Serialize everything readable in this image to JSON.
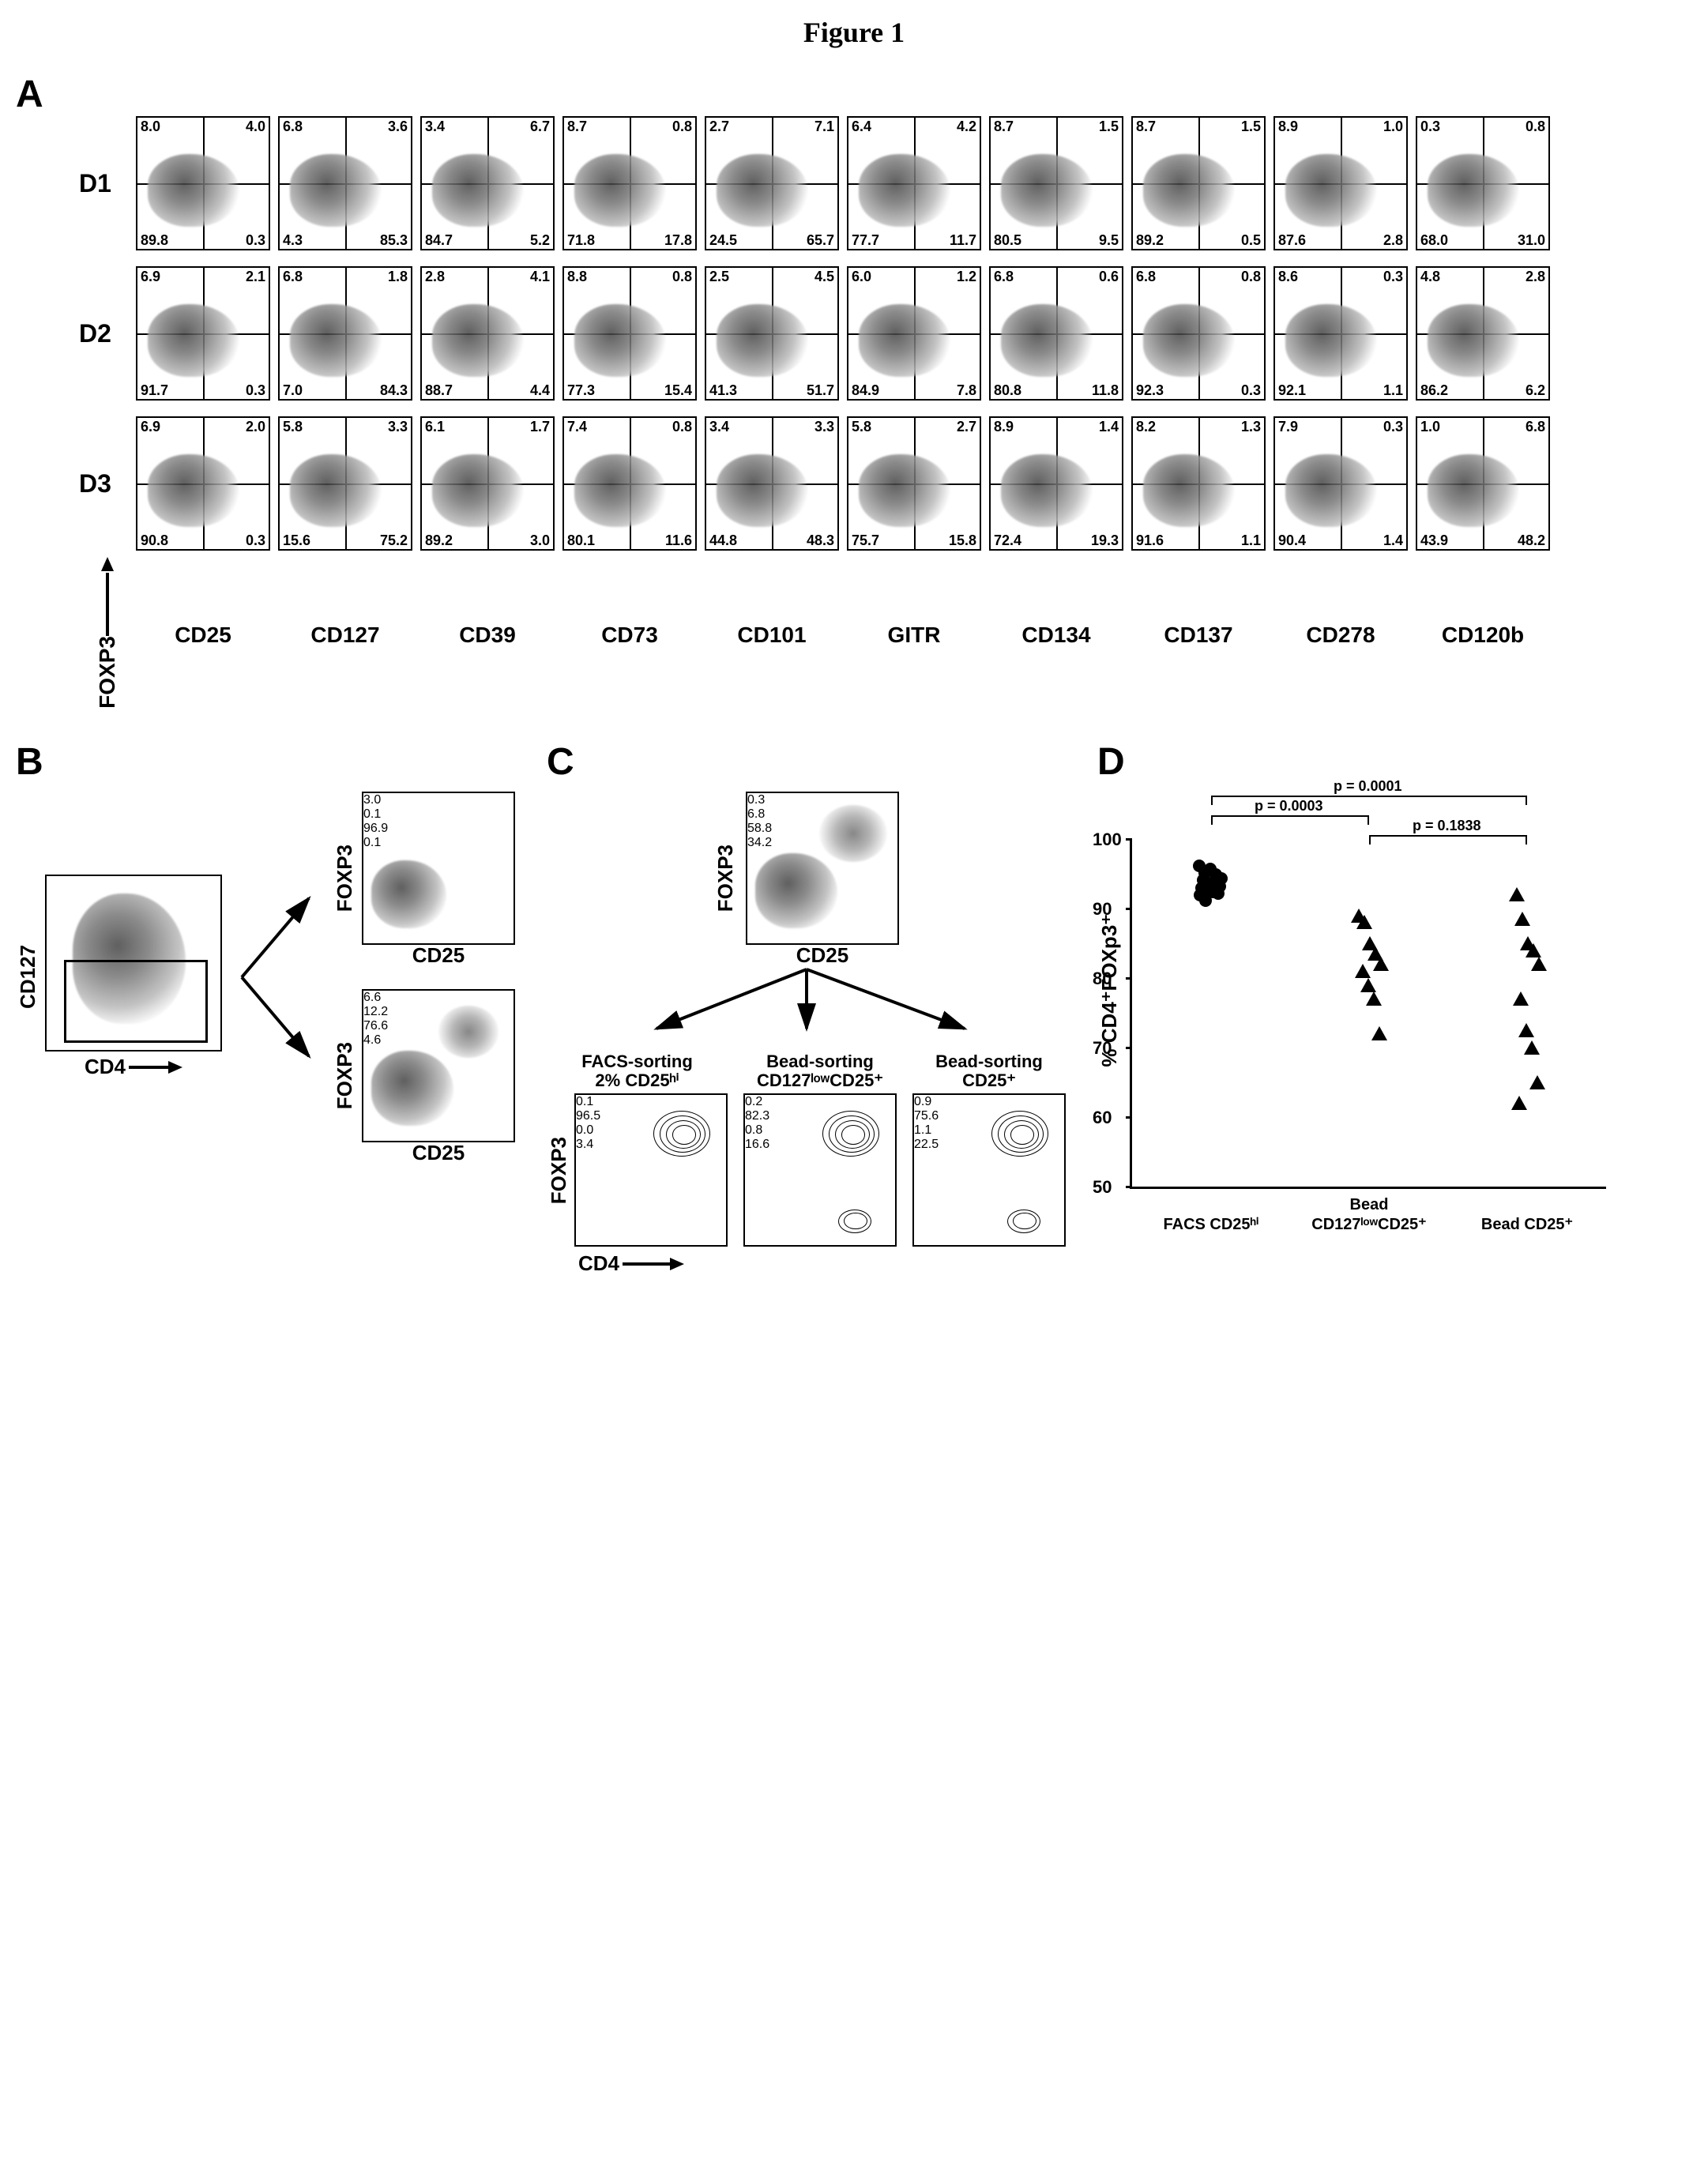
{
  "figure_title": "Figure 1",
  "panelA": {
    "donors": [
      "D1",
      "D2",
      "D3"
    ],
    "markers": [
      "CD25",
      "CD127",
      "CD39",
      "CD73",
      "CD101",
      "GITR",
      "CD134",
      "CD137",
      "CD278",
      "CD120b"
    ],
    "y_axis": "FOXP3",
    "quadrants": {
      "D1": [
        {
          "ul": "8.0",
          "ur": "4.0",
          "ll": "89.8",
          "lr": "0.3"
        },
        {
          "ul": "6.8",
          "ur": "3.6",
          "ll": "4.3",
          "lr": "85.3"
        },
        {
          "ul": "3.4",
          "ur": "6.7",
          "ll": "84.7",
          "lr": "5.2"
        },
        {
          "ul": "8.7",
          "ur": "0.8",
          "ll": "71.8",
          "lr": "17.8"
        },
        {
          "ul": "2.7",
          "ur": "7.1",
          "ll": "24.5",
          "lr": "65.7"
        },
        {
          "ul": "6.4",
          "ur": "4.2",
          "ll": "77.7",
          "lr": "11.7"
        },
        {
          "ul": "8.7",
          "ur": "1.5",
          "ll": "80.5",
          "lr": "9.5"
        },
        {
          "ul": "8.7",
          "ur": "1.5",
          "ll": "89.2",
          "lr": "0.5"
        },
        {
          "ul": "8.9",
          "ur": "1.0",
          "ll": "87.6",
          "lr": "2.8"
        },
        {
          "ul": "0.3",
          "ur": "0.8",
          "ll": "68.0",
          "lr": "31.0"
        }
      ],
      "D2": [
        {
          "ul": "6.9",
          "ur": "2.1",
          "ll": "91.7",
          "lr": "0.3"
        },
        {
          "ul": "6.8",
          "ur": "1.8",
          "ll": "7.0",
          "lr": "84.3"
        },
        {
          "ul": "2.8",
          "ur": "4.1",
          "ll": "88.7",
          "lr": "4.4"
        },
        {
          "ul": "8.8",
          "ur": "0.8",
          "ll": "77.3",
          "lr": "15.4"
        },
        {
          "ul": "2.5",
          "ur": "4.5",
          "ll": "41.3",
          "lr": "51.7"
        },
        {
          "ul": "6.0",
          "ur": "1.2",
          "ll": "84.9",
          "lr": "7.8"
        },
        {
          "ul": "6.8",
          "ur": "0.6",
          "ll": "80.8",
          "lr": "11.8"
        },
        {
          "ul": "6.8",
          "ur": "0.8",
          "ll": "92.3",
          "lr": "0.3"
        },
        {
          "ul": "8.6",
          "ur": "0.3",
          "ll": "92.1",
          "lr": "1.1"
        },
        {
          "ul": "4.8",
          "ur": "2.8",
          "ll": "86.2",
          "lr": "6.2"
        }
      ],
      "D3": [
        {
          "ul": "6.9",
          "ur": "2.0",
          "ll": "90.8",
          "lr": "0.3"
        },
        {
          "ul": "5.8",
          "ur": "3.3",
          "ll": "15.6",
          "lr": "75.2"
        },
        {
          "ul": "6.1",
          "ur": "1.7",
          "ll": "89.2",
          "lr": "3.0"
        },
        {
          "ul": "7.4",
          "ur": "0.8",
          "ll": "80.1",
          "lr": "11.6"
        },
        {
          "ul": "3.4",
          "ur": "3.3",
          "ll": "44.8",
          "lr": "48.3"
        },
        {
          "ul": "5.8",
          "ur": "2.7",
          "ll": "75.7",
          "lr": "15.8"
        },
        {
          "ul": "8.9",
          "ur": "1.4",
          "ll": "72.4",
          "lr": "19.3"
        },
        {
          "ul": "8.2",
          "ur": "1.3",
          "ll": "91.6",
          "lr": "1.1"
        },
        {
          "ul": "7.9",
          "ur": "0.3",
          "ll": "90.4",
          "lr": "1.4"
        },
        {
          "ul": "1.0",
          "ur": "6.8",
          "ll": "43.9",
          "lr": "48.2"
        }
      ]
    }
  },
  "panelB": {
    "left_y": "CD127",
    "left_x": "CD4",
    "top_quads": {
      "ul": "3.0",
      "ur": "0.1",
      "ll": "96.9",
      "lr": "0.1"
    },
    "bot_quads": {
      "ul": "6.6",
      "ur": "12.2",
      "ll": "76.6",
      "lr": "4.6"
    },
    "right_y": "FOXP3",
    "right_x": "CD25"
  },
  "panelC": {
    "top_y": "FOXP3",
    "top_x": "CD25",
    "top_quads": {
      "ul": "0.3",
      "ur": "6.8",
      "ll": "58.8",
      "lr": "34.2"
    },
    "sorts": [
      {
        "title1": "FACS-sorting",
        "title2": "2% CD25ʰⁱ",
        "ul": "0.1",
        "ur": "96.5",
        "ll": "0.0",
        "lr": "3.4"
      },
      {
        "title1": "Bead-sorting",
        "title2": "CD127ˡᵒʷCD25⁺",
        "ul": "0.2",
        "ur": "82.3",
        "ll": "0.8",
        "lr": "16.6"
      },
      {
        "title1": "Bead-sorting",
        "title2": "CD25⁺",
        "ul": "0.9",
        "ur": "75.6",
        "ll": "1.1",
        "lr": "22.5"
      }
    ],
    "bottom_y": "FOXP3",
    "bottom_x": "CD4"
  },
  "panelD": {
    "ylabel": "% CD4⁺FOXp3⁺",
    "ylim": [
      50,
      100
    ],
    "yticks": [
      50,
      60,
      70,
      80,
      90,
      100
    ],
    "categories": [
      "FACS CD25ʰⁱ",
      "Bead CD127ˡᵒʷCD25⁺",
      "Bead CD25⁺"
    ],
    "pvals": [
      {
        "label": "p = 0.0003",
        "from": 0,
        "to": 1,
        "y": 99
      },
      {
        "label": "p = 0.0001",
        "from": 0,
        "to": 2,
        "y": 104
      },
      {
        "label": "p = 0.1838",
        "from": 1,
        "to": 2,
        "y": 94
      }
    ],
    "points": {
      "0": [
        96,
        95,
        95.5,
        94.8,
        94.2,
        94,
        93.5,
        93.2,
        93,
        92.8,
        92.5,
        92.2,
        92,
        91.8,
        91
      ],
      "1": [
        89,
        88,
        85,
        83.5,
        82,
        81,
        79,
        77,
        72
      ],
      "2": [
        92,
        88.5,
        85,
        84,
        82,
        77,
        72.5,
        70,
        65,
        62
      ]
    },
    "marker_colors": {
      "0": "#000000",
      "1": "#000000",
      "2": "#000000"
    },
    "markers": {
      "0": "circle",
      "1": "triangle",
      "2": "triangle"
    }
  },
  "style": {
    "axis_color": "#000000",
    "background": "#ffffff",
    "quad_fontsize": 18,
    "label_fontsize": 28,
    "title_fontsize": 36
  }
}
